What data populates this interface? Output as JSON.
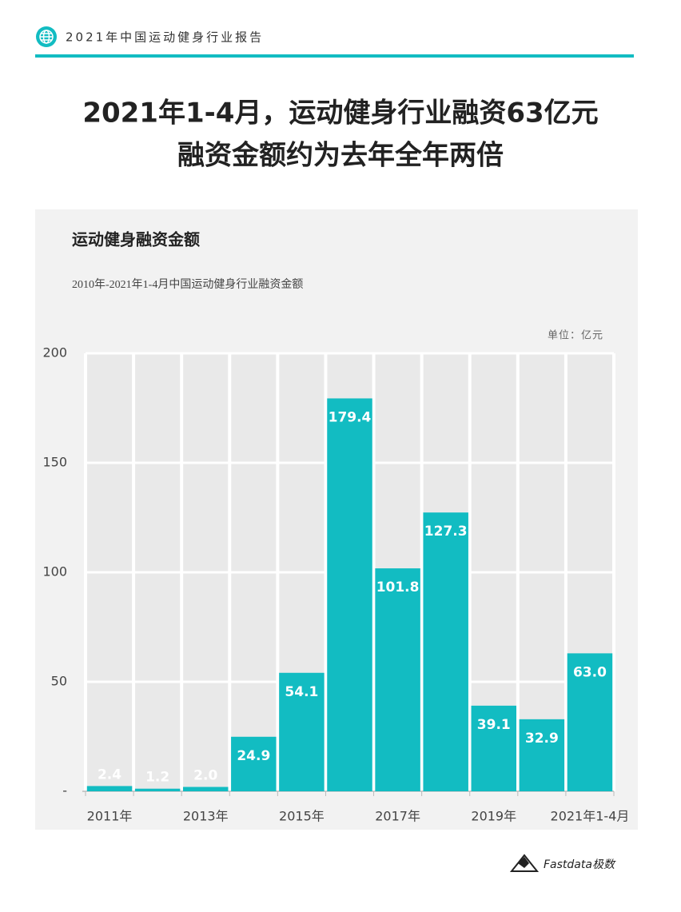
{
  "header": {
    "report_name": "2021年中国运动健身行业报告"
  },
  "headline": [
    "2021年1-4月，运动健身行业融资63亿元",
    "融资金额约为去年全年两倍"
  ],
  "chart_data": {
    "type": "bar",
    "title": "运动健身融资金额",
    "subtitle": "2010年-2021年1-4月中国运动健身行业融资金额",
    "unit_label": "单位：亿元",
    "categories": [
      "2011年",
      null,
      "2013年",
      null,
      "2015年",
      null,
      "2017年",
      null,
      "2019年",
      null,
      "2021年1-4月"
    ],
    "values": [
      2.4,
      1.2,
      2.0,
      24.9,
      54.1,
      179.4,
      101.8,
      127.3,
      39.1,
      32.9,
      63.0
    ],
    "value_labels": [
      "2.4",
      "1.2",
      "2.0",
      "24.9",
      "54.1",
      "179.4",
      "101.8",
      "127.3",
      "39.1",
      "32.9",
      "63.0"
    ],
    "color": "#12bcc2",
    "ylim": [
      0,
      200
    ],
    "yticks": [
      {
        "value": 0,
        "label": "-"
      },
      50,
      100,
      150,
      200
    ],
    "grid": true
  },
  "footer": {
    "brand": "Fastdata极数"
  }
}
